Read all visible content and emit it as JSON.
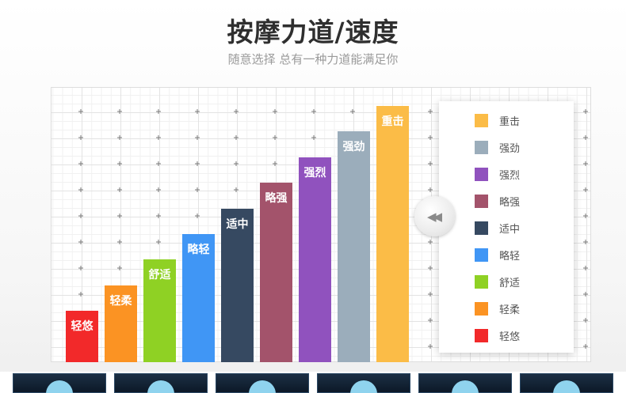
{
  "header": {
    "title": "按摩力道/速度",
    "subtitle": "随意选择 总有一种力道能满足你"
  },
  "chart_data": {
    "type": "bar",
    "categories": [
      "轻悠",
      "轻柔",
      "舒适",
      "略轻",
      "适中",
      "略强",
      "强烈",
      "强劲",
      "重击"
    ],
    "values": [
      2,
      3,
      4,
      5,
      6,
      7,
      8,
      9,
      10
    ],
    "colors": [
      "#f2292a",
      "#fb9323",
      "#8fd124",
      "#4096f5",
      "#364961",
      "#a3536b",
      "#9052be",
      "#9badbb",
      "#fbbc47"
    ],
    "ylim": [
      0,
      10
    ],
    "legend": {
      "position": "right",
      "items": [
        "重击",
        "强劲",
        "强烈",
        "略强",
        "适中",
        "略轻",
        "舒适",
        "轻柔",
        "轻悠"
      ]
    }
  },
  "legend_colors": [
    "#fbbc47",
    "#9badbb",
    "#9052be",
    "#a3536b",
    "#364961",
    "#4096f5",
    "#8fd124",
    "#fb9323",
    "#f2292a"
  ],
  "controls": {
    "collapse_icon": "double-chevron-left-icon",
    "collapse_glyph": "◀◀"
  },
  "thumbnails": {
    "count": 6,
    "icon": "massage-head-thumbnail"
  }
}
